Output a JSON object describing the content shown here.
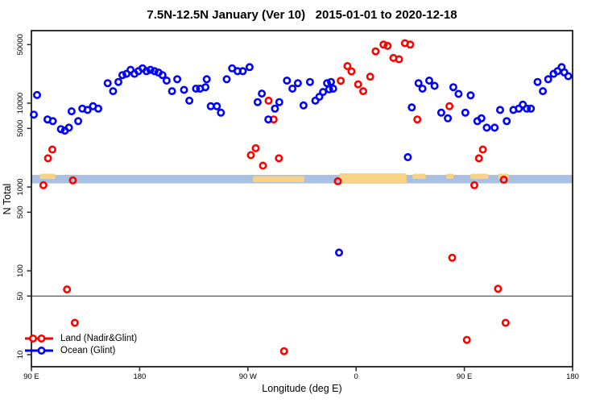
{
  "title": "7.5N-12.5N January (Ver 10)   2015-01-01 to 2020-12-18",
  "legend": {
    "items": [
      {
        "label": "Land (Nadir&Glint)",
        "color": "#ff0000",
        "symbols": 2
      },
      {
        "label": "Ocean (Glint)",
        "color": "#0000ff",
        "symbols": 1
      }
    ]
  },
  "chart_data": {
    "type": "scatter",
    "title": "7.5N-12.5N January (Ver 10)   2015-01-01 to 2020-12-18",
    "xlabel": "Longitude (deg E)",
    "ylabel": "N Total",
    "y_scale": "log10",
    "x_axis": {
      "note": "axis spans 450 deg: starts at 90E, wraps east through 180, 90W, 0, 90E, ends at 180",
      "ticks_deg": [
        0,
        90,
        180,
        270,
        360,
        450
      ],
      "tick_labels": [
        "90 E",
        "180",
        "90 W",
        "0",
        "90 E",
        "180"
      ],
      "range_deg": [
        0,
        450
      ]
    },
    "y_axis": {
      "ticks": [
        10,
        50,
        100,
        500,
        1000,
        5000,
        10000,
        50000
      ],
      "tick_labels": [
        "10",
        "50",
        "100",
        "500",
        "1000",
        "5000",
        "10000",
        "50000"
      ],
      "range": [
        7,
        73000
      ]
    },
    "reference_line_y": 50,
    "map_band": {
      "ocean_color": "#a9c0e2",
      "land_color": "#f8d287",
      "center_value": 1200,
      "land_patches_deg": [
        [
          7,
          20,
          "top"
        ],
        [
          184,
          227,
          "mid"
        ],
        [
          256,
          312,
          "full"
        ],
        [
          317,
          328,
          "top"
        ],
        [
          345,
          351,
          "top"
        ],
        [
          365,
          380,
          "top"
        ],
        [
          388,
          397,
          "top"
        ]
      ]
    },
    "series": [
      {
        "name": "Land (Nadir&Glint)",
        "color": "#ff0000",
        "points": [
          [
            10,
            1050
          ],
          [
            13.8,
            2200
          ],
          [
            17.4,
            2800
          ],
          [
            29.6,
            60
          ],
          [
            34.5,
            1200
          ],
          [
            36.1,
            24
          ],
          [
            182.5,
            2400
          ],
          [
            186.5,
            2900
          ],
          [
            192.5,
            1800
          ],
          [
            197.2,
            10700
          ],
          [
            201.4,
            6400
          ],
          [
            205.8,
            2200
          ],
          [
            210.1,
            11
          ],
          [
            254.8,
            1170
          ],
          [
            257.2,
            18500
          ],
          [
            262.8,
            27700
          ],
          [
            266.1,
            23900
          ],
          [
            271.7,
            16800
          ],
          [
            275.9,
            13900
          ],
          [
            281.7,
            20700
          ],
          [
            286.2,
            41500
          ],
          [
            292.8,
            50000
          ],
          [
            296.2,
            48300
          ],
          [
            301,
            34600
          ],
          [
            305.7,
            33400
          ],
          [
            310.6,
            51900
          ],
          [
            315,
            50000
          ],
          [
            320.9,
            6400
          ],
          [
            347.6,
            9200
          ],
          [
            349.9,
            143
          ],
          [
            362.1,
            15
          ],
          [
            368.3,
            1050
          ],
          [
            372.1,
            2200
          ],
          [
            375.4,
            2800
          ],
          [
            388,
            61
          ],
          [
            392.8,
            1220
          ],
          [
            394.3,
            24
          ]
        ]
      },
      {
        "name": "Ocean (Glint)",
        "color": "#0000ff",
        "points": [
          [
            2,
            7300
          ],
          [
            4.7,
            12500
          ],
          [
            13.4,
            6400
          ],
          [
            17.8,
            6100
          ],
          [
            24.5,
            4900
          ],
          [
            27.8,
            4700
          ],
          [
            31.2,
            5100
          ],
          [
            33.4,
            8000
          ],
          [
            38.9,
            6100
          ],
          [
            42.3,
            8600
          ],
          [
            46.7,
            8300
          ],
          [
            51.2,
            9200
          ],
          [
            55.6,
            8600
          ],
          [
            63.4,
            17300
          ],
          [
            67.9,
            13900
          ],
          [
            72.3,
            17900
          ],
          [
            75.7,
            21600
          ],
          [
            79,
            22400
          ],
          [
            82.4,
            25000
          ],
          [
            85.7,
            22400
          ],
          [
            89,
            24100
          ],
          [
            92.4,
            26000
          ],
          [
            95.7,
            24100
          ],
          [
            99,
            25000
          ],
          [
            102.4,
            24100
          ],
          [
            105.7,
            23200
          ],
          [
            109,
            21600
          ],
          [
            112.4,
            18600
          ],
          [
            116.9,
            13900
          ],
          [
            121.3,
            19300
          ],
          [
            126.9,
            14400
          ],
          [
            131.3,
            10700
          ],
          [
            136.9,
            14900
          ],
          [
            140.2,
            14900
          ],
          [
            144.7,
            15500
          ],
          [
            145.8,
            19300
          ],
          [
            149.1,
            9200
          ],
          [
            154.2,
            9200
          ],
          [
            157.6,
            7700
          ],
          [
            162.4,
            19300
          ],
          [
            166.9,
            26000
          ],
          [
            171.4,
            24100
          ],
          [
            175.8,
            24100
          ],
          [
            181.4,
            26900
          ],
          [
            188.1,
            10300
          ],
          [
            191.6,
            13000
          ],
          [
            197,
            6400
          ],
          [
            202.5,
            8600
          ],
          [
            206.1,
            10300
          ],
          [
            212.5,
            18600
          ],
          [
            217,
            14900
          ],
          [
            221.6,
            17300
          ],
          [
            226.3,
            9400
          ],
          [
            231.6,
            17900
          ],
          [
            236.1,
            10700
          ],
          [
            239.4,
            11900
          ],
          [
            242.5,
            13600
          ],
          [
            245.8,
            17300
          ],
          [
            247.6,
            14600
          ],
          [
            249.1,
            17900
          ],
          [
            250.9,
            14900
          ],
          [
            255.8,
            165
          ],
          [
            313,
            2270
          ],
          [
            316.3,
            8900
          ],
          [
            321.9,
            17300
          ],
          [
            325.2,
            14900
          ],
          [
            330.8,
            18600
          ],
          [
            335.2,
            16100
          ],
          [
            340.8,
            7700
          ],
          [
            346.3,
            6600
          ],
          [
            350.8,
            15500
          ],
          [
            355.2,
            12900
          ],
          [
            360.8,
            7700
          ],
          [
            365.2,
            12400
          ],
          [
            370.8,
            6100
          ],
          [
            374.2,
            6600
          ],
          [
            378.6,
            5100
          ],
          [
            385.2,
            5100
          ],
          [
            389.7,
            8300
          ],
          [
            395.2,
            6100
          ],
          [
            400.8,
            8300
          ],
          [
            405.3,
            8600
          ],
          [
            408.6,
            9600
          ],
          [
            411.9,
            8600
          ],
          [
            415.3,
            8600
          ],
          [
            420.9,
            17900
          ],
          [
            425.3,
            13900
          ],
          [
            429.7,
            19300
          ],
          [
            434.2,
            22400
          ],
          [
            437.5,
            24100
          ],
          [
            440.9,
            26900
          ],
          [
            443.1,
            23300
          ],
          [
            446.4,
            21000
          ]
        ]
      }
    ]
  }
}
